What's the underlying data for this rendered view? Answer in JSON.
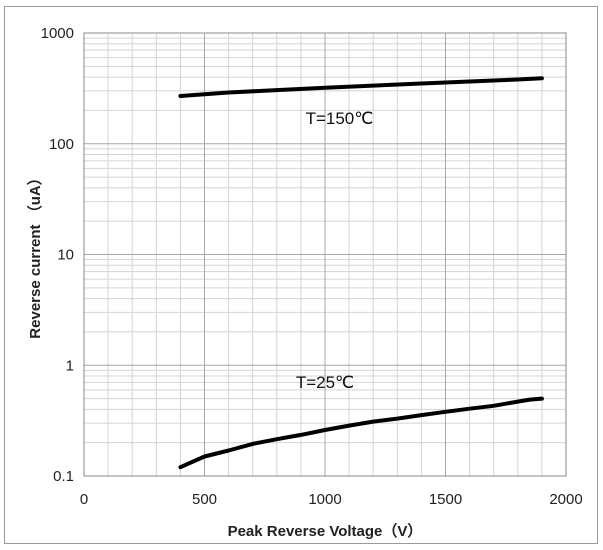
{
  "chart_data": {
    "type": "line",
    "title": "",
    "xlabel": "Peak Reverse Voltage（V）",
    "ylabel": "Reverse current （uA）",
    "xlim": [
      0,
      2000
    ],
    "ylim": [
      0.1,
      1000
    ],
    "yscale": "log",
    "grid": true,
    "x_ticks": [
      "0",
      "500",
      "1000",
      "1500",
      "2000"
    ],
    "y_ticks": [
      "0.1",
      "1",
      "10",
      "100",
      "1000"
    ],
    "series": [
      {
        "name": "T=150℃",
        "color": "#000000",
        "x": [
          400,
          600,
          800,
          1000,
          1200,
          1400,
          1600,
          1800,
          1900
        ],
        "y": [
          270,
          290,
          305,
          320,
          335,
          350,
          365,
          380,
          390
        ]
      },
      {
        "name": "T=25℃",
        "color": "#000000",
        "x": [
          400,
          500,
          600,
          700,
          800,
          900,
          1000,
          1100,
          1200,
          1300,
          1400,
          1500,
          1600,
          1700,
          1800,
          1850,
          1900
        ],
        "y": [
          0.12,
          0.15,
          0.17,
          0.195,
          0.215,
          0.235,
          0.26,
          0.285,
          0.31,
          0.33,
          0.355,
          0.38,
          0.405,
          0.43,
          0.47,
          0.49,
          0.5
        ]
      }
    ],
    "annotations": [
      {
        "text": "T=150℃",
        "x": 1060,
        "y": 150
      },
      {
        "text": "T=25℃",
        "x": 1000,
        "y": 0.62
      }
    ]
  }
}
